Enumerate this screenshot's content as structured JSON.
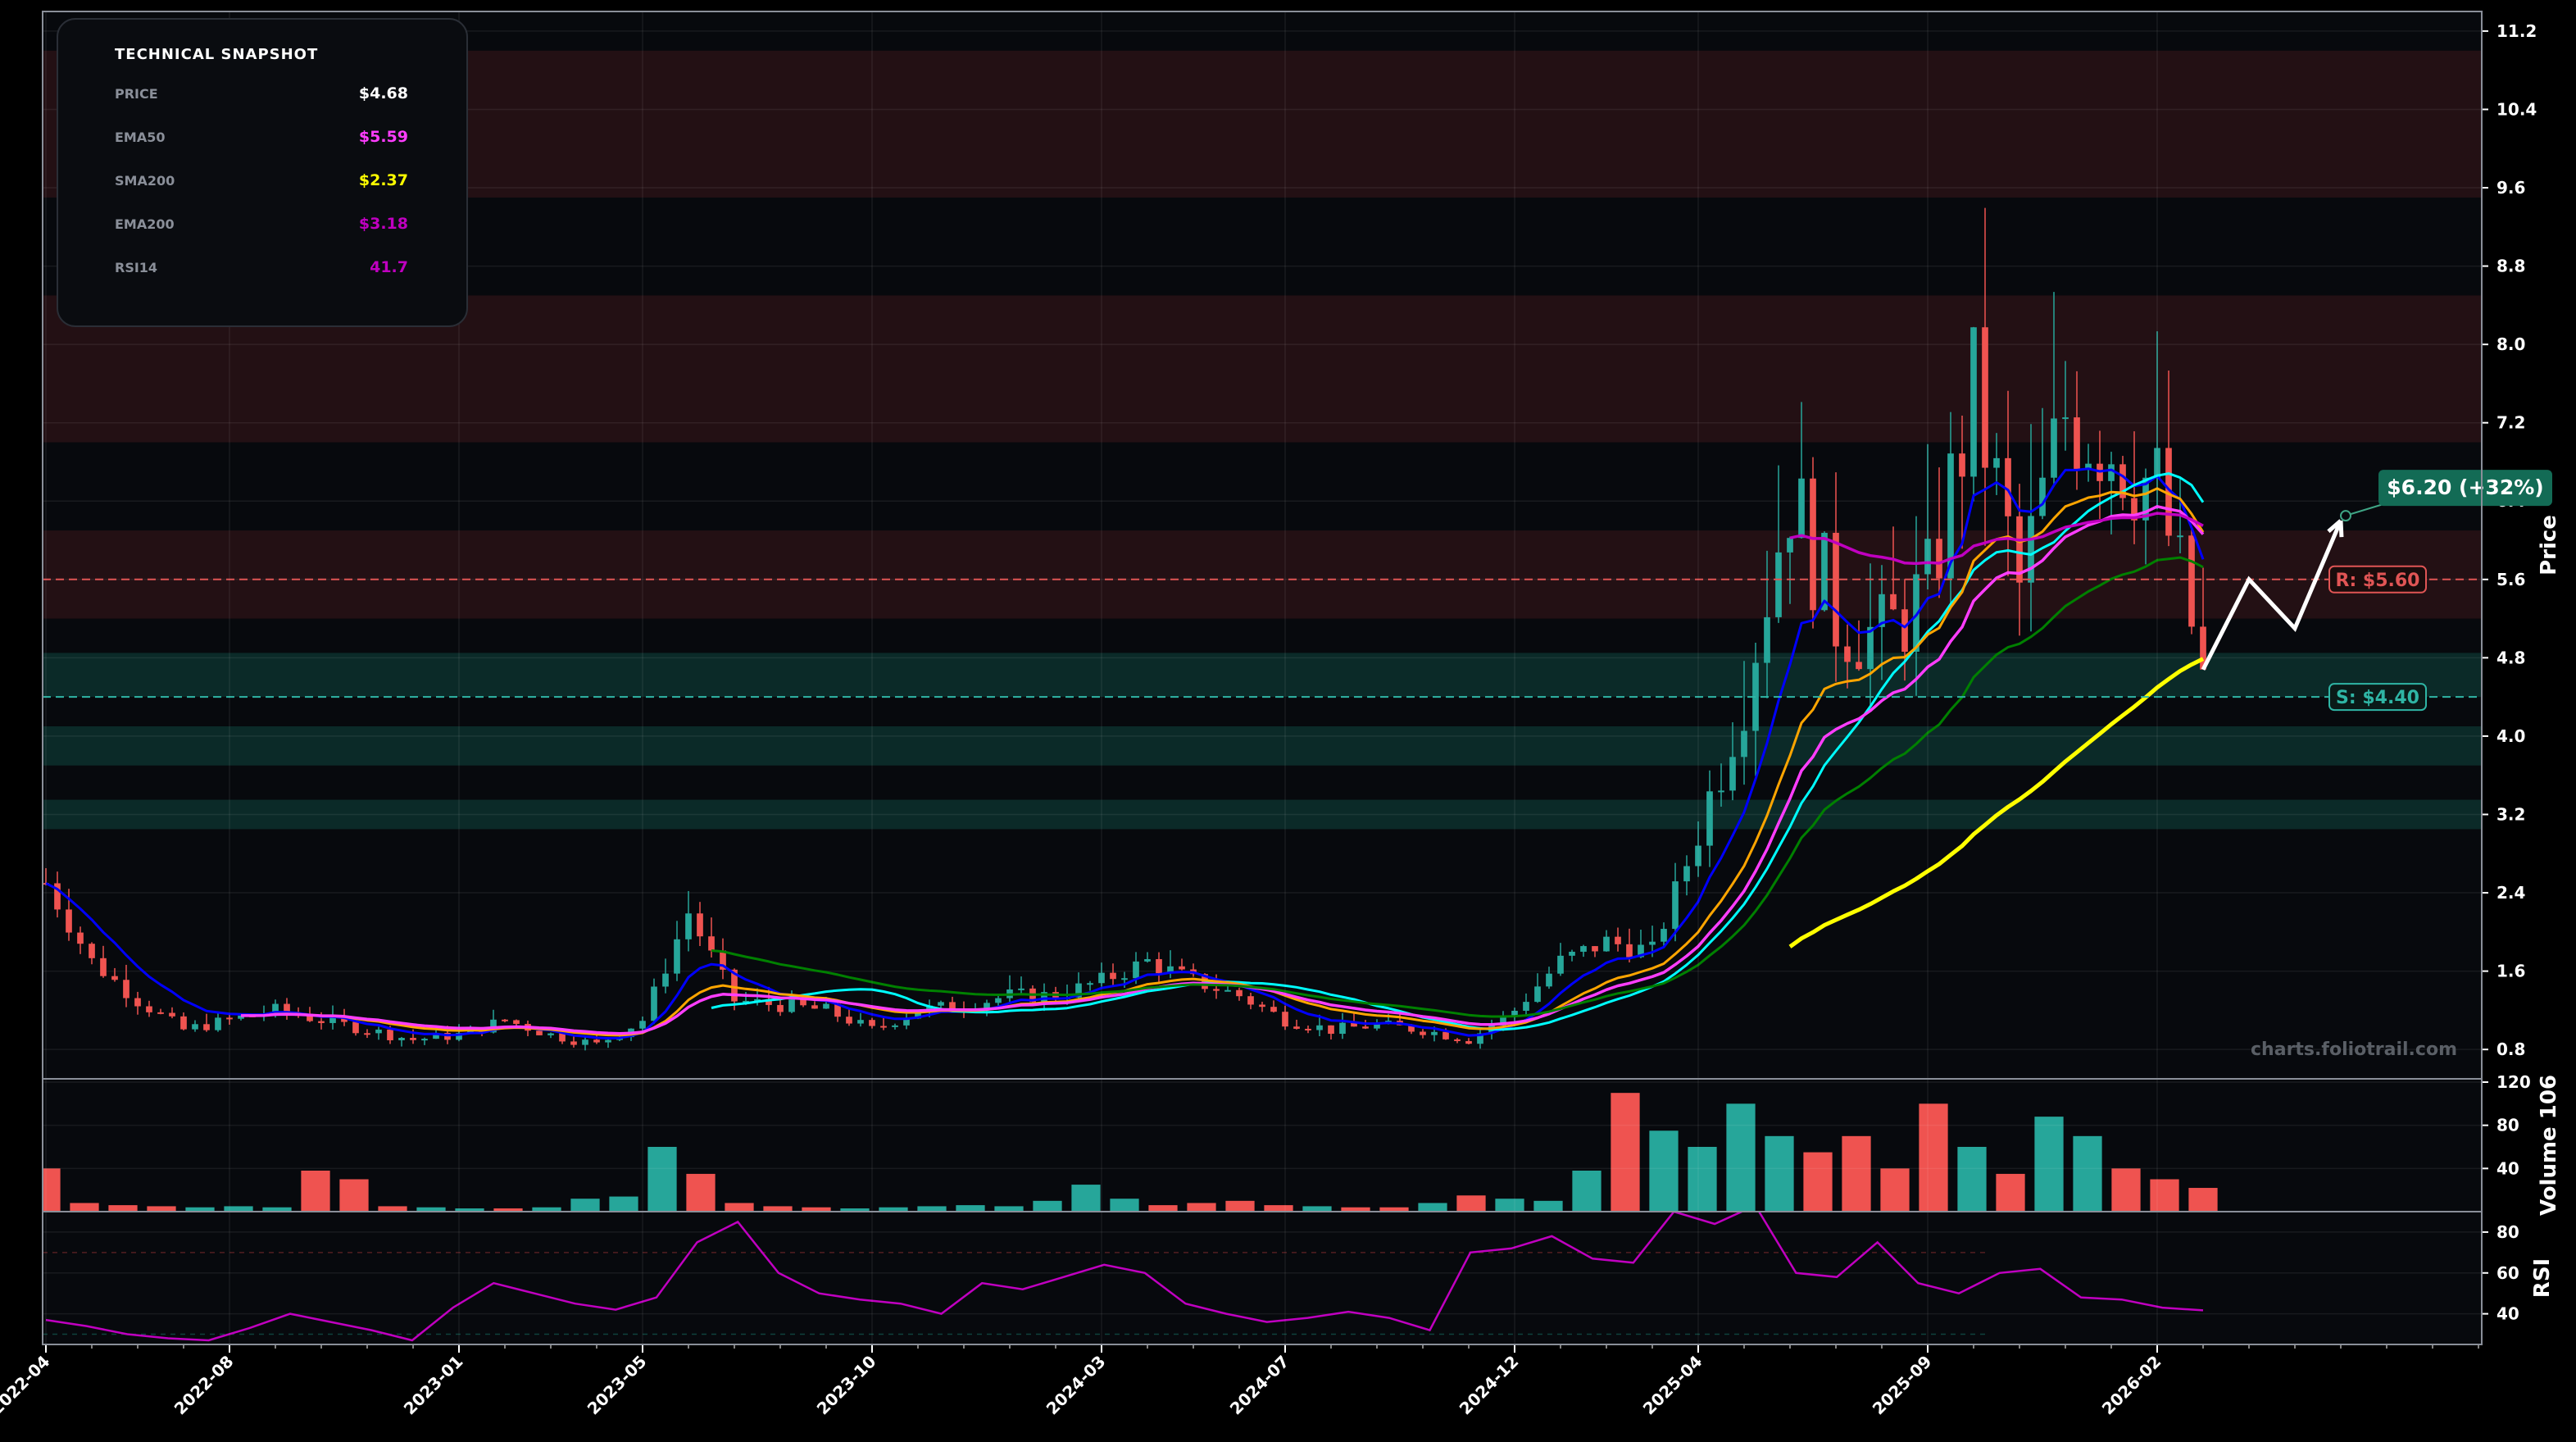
{
  "snapshot": {
    "title": "TECHNICAL SNAPSHOT",
    "rows": [
      {
        "label": "PRICE",
        "value": "$4.68",
        "color": "#ffffff"
      },
      {
        "label": "EMA50",
        "value": "$5.59",
        "color": "#ff3dff"
      },
      {
        "label": "SMA200",
        "value": "$2.37",
        "color": "#ffff00"
      },
      {
        "label": "EMA200",
        "value": "$3.18",
        "color": "#c000c0"
      },
      {
        "label": "RSI14",
        "value": "41.7",
        "color": "#c000c0"
      }
    ]
  },
  "watermark": "charts.foliotrail.com",
  "annotations": {
    "resistance": {
      "label": "R: $5.60",
      "value": 5.6,
      "color": "#e05555"
    },
    "support": {
      "label": "S: $4.40",
      "value": 4.4,
      "color": "#2fb5a5"
    },
    "target": {
      "label": "$6.20 (+32%)",
      "value": 6.2,
      "color": "#136b55"
    }
  },
  "chart_data": [
    {
      "type": "candlestick",
      "panel": "price",
      "ylabel": "Price",
      "ylim": [
        0.5,
        11.4
      ],
      "yticks": [
        "0.8",
        "1.6",
        "2.4",
        "3.2",
        "4.0",
        "4.8",
        "5.6",
        "6.4",
        "7.2",
        "8.0",
        "8.8",
        "9.6",
        "10.4",
        "11.2"
      ],
      "x_range": [
        "2022-04",
        "2026-09"
      ],
      "xtick_labels": [
        "2022-04",
        "2022-08",
        "2023-01",
        "2023-05",
        "2023-10",
        "2024-03",
        "2024-07",
        "2024-12",
        "2025-04",
        "2025-09",
        "2026-02"
      ],
      "series_colors": {
        "up": "#26a69a",
        "down": "#ef5350",
        "ema_short": "#0000ff",
        "sma_short": "#00ffff",
        "sma_mid": "#ffa500",
        "ema50": "#ff3dff",
        "ema_mid": "#008000",
        "ema200": "#c000c0",
        "sma200": "#ffff00"
      },
      "price_path": [
        [
          "2022-04",
          2.5
        ],
        [
          "2022-05",
          1.7
        ],
        [
          "2022-06",
          1.3
        ],
        [
          "2022-07",
          1.0
        ],
        [
          "2022-08",
          1.1
        ],
        [
          "2022-09",
          1.2
        ],
        [
          "2022-10",
          1.1
        ],
        [
          "2022-11",
          1.0
        ],
        [
          "2022-12",
          0.9
        ],
        [
          "2023-01",
          0.95
        ],
        [
          "2023-02",
          1.1
        ],
        [
          "2023-03",
          0.95
        ],
        [
          "2023-04",
          0.85
        ],
        [
          "2023-05",
          1.1
        ],
        [
          "2023-06",
          2.2
        ],
        [
          "2023-07",
          1.3
        ],
        [
          "2023-08",
          1.25
        ],
        [
          "2023-09",
          1.2
        ],
        [
          "2023-10",
          1.0
        ],
        [
          "2023-11",
          1.2
        ],
        [
          "2023-12",
          1.25
        ],
        [
          "2024-01",
          1.35
        ],
        [
          "2024-02",
          1.35
        ],
        [
          "2024-03",
          1.5
        ],
        [
          "2024-04",
          1.7
        ],
        [
          "2024-05",
          1.5
        ],
        [
          "2024-06",
          1.35
        ],
        [
          "2024-07",
          1.1
        ],
        [
          "2024-08",
          1.0
        ],
        [
          "2024-09",
          1.05
        ],
        [
          "2024-10",
          1.0
        ],
        [
          "2024-11",
          0.9
        ],
        [
          "2024-12",
          1.2
        ],
        [
          "2025-01",
          1.7
        ],
        [
          "2025-02",
          1.9
        ],
        [
          "2025-03",
          1.8
        ],
        [
          "2025-04",
          3.0
        ],
        [
          "2025-05",
          4.5
        ],
        [
          "2025-06",
          6.5
        ],
        [
          "2025-07",
          5.2
        ],
        [
          "2025-08",
          5.0
        ],
        [
          "2025-09",
          5.5
        ],
        [
          "2025-10",
          7.5
        ],
        [
          "2025-11",
          5.5
        ],
        [
          "2025-12",
          7.3
        ],
        [
          "2026-01",
          7.0
        ],
        [
          "2026-02",
          6.5
        ],
        [
          "2026-03",
          4.68
        ]
      ],
      "projection": [
        [
          "2026-03",
          4.68
        ],
        [
          "2026-04",
          5.6
        ],
        [
          "2026-05",
          5.1
        ],
        [
          "2026-06",
          6.2
        ]
      ],
      "resistance_zones": [
        [
          9.5,
          11.0
        ],
        [
          7.0,
          8.5
        ],
        [
          5.2,
          6.1
        ]
      ],
      "support_zones": [
        [
          4.4,
          4.85
        ],
        [
          3.7,
          4.1
        ],
        [
          3.05,
          3.35
        ]
      ],
      "support_level": 4.4,
      "resistance_level": 5.6,
      "target": 6.2
    },
    {
      "type": "bar",
      "panel": "volume",
      "ylabel": "Volume",
      "yunit": "10^6",
      "ylim": [
        0,
        120
      ],
      "yticks": [
        "40",
        "80",
        "120"
      ],
      "values_approx": [
        40,
        8,
        6,
        5,
        4,
        5,
        4,
        38,
        30,
        5,
        4,
        3,
        3,
        4,
        12,
        14,
        60,
        35,
        8,
        5,
        4,
        3,
        4,
        5,
        6,
        5,
        10,
        25,
        12,
        6,
        8,
        10,
        6,
        5,
        4,
        4,
        8,
        15,
        12,
        10,
        38,
        110,
        75,
        60,
        100,
        70,
        55,
        70,
        40,
        100,
        60,
        35,
        88,
        70,
        40,
        30,
        22
      ]
    },
    {
      "type": "line",
      "panel": "rsi",
      "ylabel": "RSI",
      "ylim": [
        25,
        90
      ],
      "yticks": [
        "40",
        "60",
        "80"
      ],
      "values_approx": [
        37,
        34,
        30,
        28,
        27,
        33,
        40,
        36,
        32,
        27,
        43,
        55,
        50,
        45,
        42,
        48,
        75,
        85,
        60,
        50,
        47,
        45,
        40,
        55,
        52,
        58,
        64,
        60,
        45,
        40,
        36,
        38,
        41,
        38,
        32,
        70,
        72,
        78,
        67,
        65,
        90,
        84,
        93,
        60,
        58,
        75,
        55,
        50,
        60,
        62,
        48,
        47,
        43,
        41.7
      ]
    }
  ]
}
